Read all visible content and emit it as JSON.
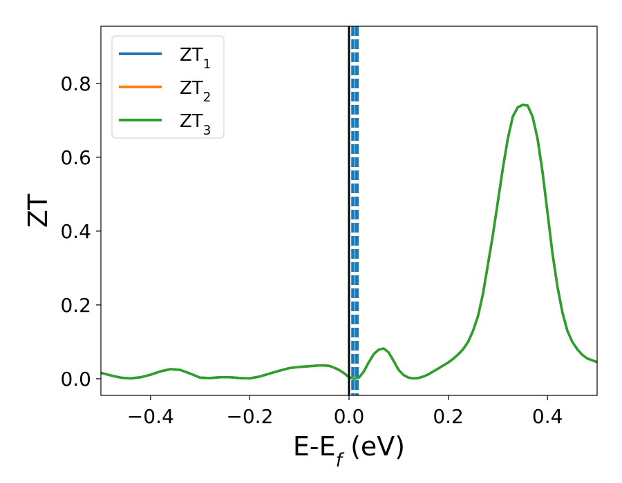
{
  "chart_data": {
    "type": "line",
    "xlabel": "E-E_f (eV)",
    "ylabel": "ZT",
    "xlim": [
      -0.5,
      0.5
    ],
    "ylim": [
      -0.045,
      0.955
    ],
    "xticks": [
      -0.4,
      -0.2,
      0.0,
      0.2,
      0.4
    ],
    "xtick_labels": [
      "−0.4",
      "−0.2",
      "0.0",
      "0.2",
      "0.4"
    ],
    "yticks": [
      0.0,
      0.2,
      0.4,
      0.6,
      0.8
    ],
    "ytick_labels": [
      "0.0",
      "0.2",
      "0.4",
      "0.6",
      "0.8"
    ],
    "grid": false,
    "legend_position": "top-left",
    "series": [
      {
        "name": "ZT_1",
        "color": "#1f77b4",
        "x": [
          -0.5,
          -0.48,
          -0.46,
          -0.44,
          -0.42,
          -0.4,
          -0.38,
          -0.36,
          -0.34,
          -0.32,
          -0.3,
          -0.28,
          -0.26,
          -0.24,
          -0.22,
          -0.2,
          -0.18,
          -0.16,
          -0.14,
          -0.12,
          -0.1,
          -0.08,
          -0.06,
          -0.05,
          -0.04,
          -0.03,
          -0.02,
          -0.01,
          0.0,
          0.01,
          0.02,
          0.03,
          0.04,
          0.05,
          0.06,
          0.07,
          0.08,
          0.09,
          0.1,
          0.11,
          0.12,
          0.13,
          0.14,
          0.15,
          0.16,
          0.17,
          0.18,
          0.19,
          0.2,
          0.21,
          0.22,
          0.23,
          0.24,
          0.25,
          0.26,
          0.27,
          0.28,
          0.29,
          0.3,
          0.31,
          0.32,
          0.33,
          0.34,
          0.35,
          0.36,
          0.37,
          0.38,
          0.39,
          0.4,
          0.41,
          0.42,
          0.43,
          0.44,
          0.45,
          0.46,
          0.47,
          0.48,
          0.49,
          0.5
        ],
        "y": [
          0.016,
          0.009,
          0.003,
          0.001,
          0.004,
          0.011,
          0.02,
          0.026,
          0.024,
          0.014,
          0.003,
          0.002,
          0.004,
          0.004,
          0.002,
          0.001,
          0.006,
          0.014,
          0.022,
          0.029,
          0.032,
          0.034,
          0.036,
          0.036,
          0.035,
          0.03,
          0.024,
          0.015,
          0.004,
          0.0,
          0.003,
          0.02,
          0.045,
          0.067,
          0.079,
          0.082,
          0.071,
          0.048,
          0.024,
          0.01,
          0.003,
          0.001,
          0.002,
          0.006,
          0.012,
          0.02,
          0.028,
          0.036,
          0.044,
          0.054,
          0.066,
          0.08,
          0.1,
          0.13,
          0.17,
          0.23,
          0.31,
          0.39,
          0.48,
          0.57,
          0.65,
          0.71,
          0.735,
          0.742,
          0.74,
          0.71,
          0.65,
          0.56,
          0.45,
          0.34,
          0.25,
          0.18,
          0.13,
          0.1,
          0.08,
          0.065,
          0.055,
          0.05,
          0.045
        ]
      },
      {
        "name": "ZT_2",
        "color": "#ff7f0e",
        "x": [
          -0.5,
          -0.48,
          -0.46,
          -0.44,
          -0.42,
          -0.4,
          -0.38,
          -0.36,
          -0.34,
          -0.32,
          -0.3,
          -0.28,
          -0.26,
          -0.24,
          -0.22,
          -0.2,
          -0.18,
          -0.16,
          -0.14,
          -0.12,
          -0.1,
          -0.08,
          -0.06,
          -0.05,
          -0.04,
          -0.03,
          -0.02,
          -0.01,
          0.0,
          0.01,
          0.02,
          0.03,
          0.04,
          0.05,
          0.06,
          0.07,
          0.08,
          0.09,
          0.1,
          0.11,
          0.12,
          0.13,
          0.14,
          0.15,
          0.16,
          0.17,
          0.18,
          0.19,
          0.2,
          0.21,
          0.22,
          0.23,
          0.24,
          0.25,
          0.26,
          0.27,
          0.28,
          0.29,
          0.3,
          0.31,
          0.32,
          0.33,
          0.34,
          0.35,
          0.36,
          0.37,
          0.38,
          0.39,
          0.4,
          0.41,
          0.42,
          0.43,
          0.44,
          0.45,
          0.46,
          0.47,
          0.48,
          0.49,
          0.5
        ],
        "y": [
          0.016,
          0.009,
          0.003,
          0.001,
          0.004,
          0.011,
          0.02,
          0.026,
          0.024,
          0.014,
          0.003,
          0.002,
          0.004,
          0.004,
          0.002,
          0.001,
          0.006,
          0.014,
          0.022,
          0.029,
          0.032,
          0.034,
          0.036,
          0.036,
          0.035,
          0.03,
          0.024,
          0.015,
          0.004,
          0.0,
          0.003,
          0.02,
          0.045,
          0.067,
          0.079,
          0.082,
          0.071,
          0.048,
          0.024,
          0.01,
          0.003,
          0.001,
          0.002,
          0.006,
          0.012,
          0.02,
          0.028,
          0.036,
          0.044,
          0.054,
          0.066,
          0.08,
          0.1,
          0.13,
          0.17,
          0.23,
          0.31,
          0.39,
          0.48,
          0.57,
          0.65,
          0.71,
          0.735,
          0.742,
          0.74,
          0.71,
          0.65,
          0.56,
          0.45,
          0.34,
          0.25,
          0.18,
          0.13,
          0.1,
          0.08,
          0.065,
          0.055,
          0.05,
          0.045
        ]
      },
      {
        "name": "ZT_3",
        "color": "#2ca02c",
        "x": [
          -0.5,
          -0.48,
          -0.46,
          -0.44,
          -0.42,
          -0.4,
          -0.38,
          -0.36,
          -0.34,
          -0.32,
          -0.3,
          -0.28,
          -0.26,
          -0.24,
          -0.22,
          -0.2,
          -0.18,
          -0.16,
          -0.14,
          -0.12,
          -0.1,
          -0.08,
          -0.06,
          -0.05,
          -0.04,
          -0.03,
          -0.02,
          -0.01,
          0.0,
          0.01,
          0.02,
          0.03,
          0.04,
          0.05,
          0.06,
          0.07,
          0.08,
          0.09,
          0.1,
          0.11,
          0.12,
          0.13,
          0.14,
          0.15,
          0.16,
          0.17,
          0.18,
          0.19,
          0.2,
          0.21,
          0.22,
          0.23,
          0.24,
          0.25,
          0.26,
          0.27,
          0.28,
          0.29,
          0.3,
          0.31,
          0.32,
          0.33,
          0.34,
          0.35,
          0.36,
          0.37,
          0.38,
          0.39,
          0.4,
          0.41,
          0.42,
          0.43,
          0.44,
          0.45,
          0.46,
          0.47,
          0.48,
          0.49,
          0.5
        ],
        "y": [
          0.016,
          0.009,
          0.003,
          0.001,
          0.004,
          0.011,
          0.02,
          0.026,
          0.024,
          0.014,
          0.003,
          0.002,
          0.004,
          0.004,
          0.002,
          0.001,
          0.006,
          0.014,
          0.022,
          0.029,
          0.032,
          0.034,
          0.036,
          0.036,
          0.035,
          0.03,
          0.024,
          0.015,
          0.004,
          0.0,
          0.003,
          0.02,
          0.045,
          0.067,
          0.079,
          0.082,
          0.071,
          0.048,
          0.024,
          0.01,
          0.003,
          0.001,
          0.002,
          0.006,
          0.012,
          0.02,
          0.028,
          0.036,
          0.044,
          0.054,
          0.066,
          0.08,
          0.1,
          0.13,
          0.17,
          0.23,
          0.31,
          0.39,
          0.48,
          0.57,
          0.65,
          0.71,
          0.735,
          0.742,
          0.74,
          0.71,
          0.65,
          0.56,
          0.45,
          0.34,
          0.25,
          0.18,
          0.13,
          0.1,
          0.08,
          0.065,
          0.055,
          0.05,
          0.045
        ]
      }
    ],
    "vlines": [
      {
        "x": 0.0,
        "color": "#000000",
        "style": "solid"
      },
      {
        "x": 0.008,
        "color": "#1f77b4",
        "style": "dashed"
      },
      {
        "x": 0.016,
        "color": "#1f77b4",
        "style": "dashed"
      }
    ]
  }
}
